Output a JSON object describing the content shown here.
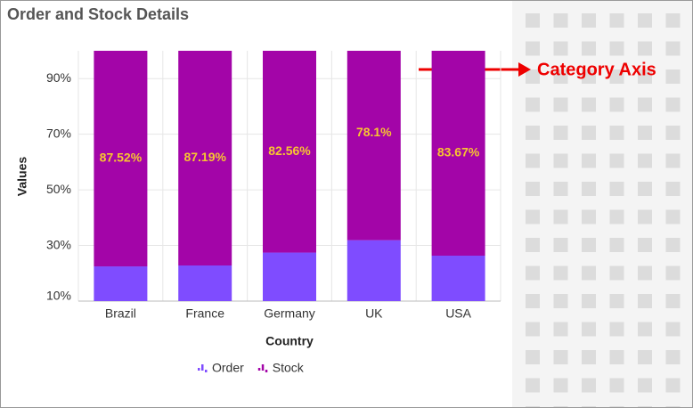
{
  "chart_data": {
    "type": "stacked_percent_bar",
    "title": "Order and Stock Details",
    "categories": [
      "Brazil",
      "France",
      "Germany",
      "UK",
      "USA"
    ],
    "series": [
      {
        "name": "Order",
        "color": "#7f4cff",
        "values": [
          12.48,
          12.81,
          17.44,
          21.9,
          16.33
        ]
      },
      {
        "name": "Stock",
        "color": "#a305a8",
        "values": [
          87.52,
          87.19,
          82.56,
          78.1,
          83.67
        ],
        "value_labels": [
          "87.52%",
          "87.19%",
          "82.56%",
          "78.1%",
          "83.67%"
        ]
      }
    ],
    "ylim": [
      10,
      100
    ],
    "yticks": [
      {
        "value": 10,
        "label": "10%"
      },
      {
        "value": 30,
        "label": "30%"
      },
      {
        "value": 50,
        "label": "50%"
      },
      {
        "value": 70,
        "label": "70%"
      },
      {
        "value": 90,
        "label": "90%"
      }
    ],
    "x_label": "Country",
    "y_label": "Values",
    "grid": true,
    "legend": "bottom",
    "annotation": "Category Axis"
  }
}
